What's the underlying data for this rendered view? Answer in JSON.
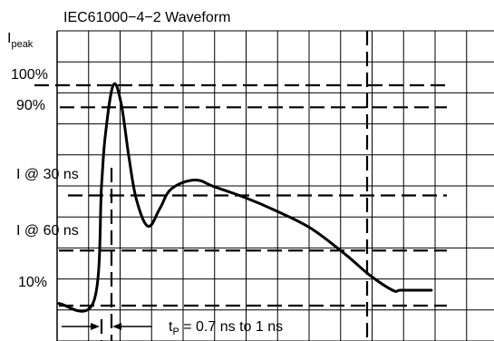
{
  "chart_data": {
    "type": "line",
    "title": "IEC61000−4−2 Waveform",
    "ylabel_main": "I",
    "ylabel_sub": "peak",
    "y_labels": {
      "p100": "100%",
      "p90": "90%",
      "i30": "I @ 30 ns",
      "i60": "I @ 60 ns",
      "p10": "10%"
    },
    "annotation": {
      "main": "t",
      "sub": "P",
      "rest": " = 0.7 ns to 1 ns"
    },
    "grid": true,
    "xlim": [
      0,
      100
    ],
    "ylim": [
      0,
      100
    ],
    "series": [
      {
        "x": [
          0,
          9,
          11,
          12,
          14,
          16,
          18,
          20,
          23,
          26,
          29,
          35,
          40,
          48,
          56,
          65,
          74,
          80,
          86,
          88,
          92,
          96
        ],
        "values": [
          1,
          2,
          55,
          78,
          100,
          92,
          68,
          48,
          36,
          44,
          53,
          57,
          54,
          49,
          43,
          35,
          23,
          14,
          7,
          7,
          7,
          7
        ]
      }
    ],
    "reference_levels": [
      100,
      90,
      50,
      25,
      0
    ],
    "reference_x": [
      13,
      69
    ]
  }
}
